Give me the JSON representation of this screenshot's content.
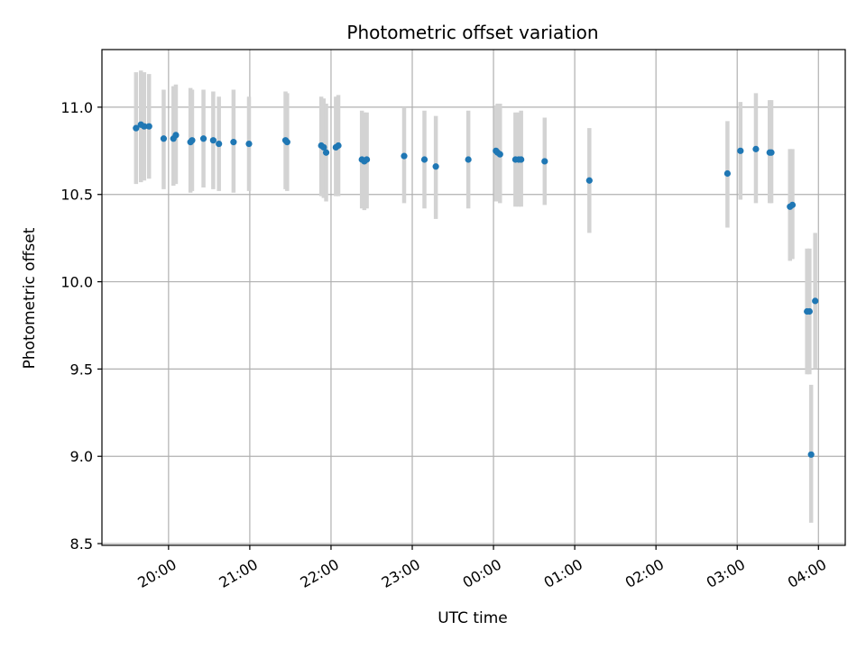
{
  "chart_data": {
    "type": "scatter",
    "title": "Photometric offset variation",
    "xlabel": "UTC time",
    "ylabel": "Photometric offset",
    "x_unit": "hours past 00:00 UTC (negative = previous evening)",
    "xlim": [
      -4.82,
      4.33
    ],
    "ylim": [
      8.49,
      11.33
    ],
    "xticks": [
      -4,
      -3,
      -2,
      -1,
      0,
      1,
      2,
      3,
      4
    ],
    "xtick_labels": [
      "20:00",
      "21:00",
      "22:00",
      "23:00",
      "00:00",
      "01:00",
      "02:00",
      "03:00",
      "04:00"
    ],
    "yticks": [
      8.5,
      9.0,
      9.5,
      10.0,
      10.5,
      11.0
    ],
    "ytick_labels": [
      "8.5",
      "9.0",
      "9.5",
      "10.0",
      "10.5",
      "11.0"
    ],
    "grid": true,
    "colors": {
      "points": "#1f77b4",
      "errorbars": "#d3d3d3",
      "grid": "#b0b0b0",
      "axes": "#000000"
    },
    "points": [
      {
        "x": -4.4,
        "y": 10.88,
        "lo": 10.56,
        "hi": 11.2
      },
      {
        "x": -4.34,
        "y": 10.9,
        "lo": 10.57,
        "hi": 11.21
      },
      {
        "x": -4.3,
        "y": 10.89,
        "lo": 10.58,
        "hi": 11.2
      },
      {
        "x": -4.24,
        "y": 10.89,
        "lo": 10.59,
        "hi": 11.19
      },
      {
        "x": -4.06,
        "y": 10.82,
        "lo": 10.53,
        "hi": 11.1
      },
      {
        "x": -3.94,
        "y": 10.82,
        "lo": 10.55,
        "hi": 11.12
      },
      {
        "x": -3.91,
        "y": 10.84,
        "lo": 10.56,
        "hi": 11.13
      },
      {
        "x": -3.73,
        "y": 10.8,
        "lo": 10.51,
        "hi": 11.11
      },
      {
        "x": -3.71,
        "y": 10.81,
        "lo": 10.52,
        "hi": 11.1
      },
      {
        "x": -3.57,
        "y": 10.82,
        "lo": 10.54,
        "hi": 11.1
      },
      {
        "x": -3.45,
        "y": 10.81,
        "lo": 10.53,
        "hi": 11.09
      },
      {
        "x": -3.38,
        "y": 10.79,
        "lo": 10.52,
        "hi": 11.06
      },
      {
        "x": -3.2,
        "y": 10.8,
        "lo": 10.51,
        "hi": 11.1
      },
      {
        "x": -3.01,
        "y": 10.79,
        "lo": 10.52,
        "hi": 11.06
      },
      {
        "x": -2.56,
        "y": 10.81,
        "lo": 10.53,
        "hi": 11.09
      },
      {
        "x": -2.54,
        "y": 10.8,
        "lo": 10.52,
        "hi": 11.08
      },
      {
        "x": -2.12,
        "y": 10.78,
        "lo": 10.49,
        "hi": 11.06
      },
      {
        "x": -2.09,
        "y": 10.77,
        "lo": 10.48,
        "hi": 11.05
      },
      {
        "x": -2.06,
        "y": 10.74,
        "lo": 10.46,
        "hi": 11.02
      },
      {
        "x": -1.94,
        "y": 10.77,
        "lo": 10.49,
        "hi": 11.06
      },
      {
        "x": -1.91,
        "y": 10.78,
        "lo": 10.49,
        "hi": 11.07
      },
      {
        "x": -1.62,
        "y": 10.7,
        "lo": 10.42,
        "hi": 10.98
      },
      {
        "x": -1.59,
        "y": 10.69,
        "lo": 10.41,
        "hi": 10.97
      },
      {
        "x": -1.56,
        "y": 10.7,
        "lo": 10.42,
        "hi": 10.97
      },
      {
        "x": -1.1,
        "y": 10.72,
        "lo": 10.45,
        "hi": 11.0
      },
      {
        "x": -0.85,
        "y": 10.7,
        "lo": 10.42,
        "hi": 10.98
      },
      {
        "x": -0.71,
        "y": 10.66,
        "lo": 10.36,
        "hi": 10.95
      },
      {
        "x": -0.31,
        "y": 10.7,
        "lo": 10.42,
        "hi": 10.98
      },
      {
        "x": 0.03,
        "y": 10.75,
        "lo": 10.46,
        "hi": 11.01
      },
      {
        "x": 0.05,
        "y": 10.74,
        "lo": 10.46,
        "hi": 11.02
      },
      {
        "x": 0.08,
        "y": 10.73,
        "lo": 10.45,
        "hi": 11.02
      },
      {
        "x": 0.27,
        "y": 10.7,
        "lo": 10.43,
        "hi": 10.97
      },
      {
        "x": 0.31,
        "y": 10.7,
        "lo": 10.43,
        "hi": 10.97
      },
      {
        "x": 0.34,
        "y": 10.7,
        "lo": 10.43,
        "hi": 10.98
      },
      {
        "x": 0.63,
        "y": 10.69,
        "lo": 10.44,
        "hi": 10.94
      },
      {
        "x": 1.18,
        "y": 10.58,
        "lo": 10.28,
        "hi": 10.88
      },
      {
        "x": 2.88,
        "y": 10.62,
        "lo": 10.31,
        "hi": 10.92
      },
      {
        "x": 3.04,
        "y": 10.75,
        "lo": 10.47,
        "hi": 11.03
      },
      {
        "x": 3.23,
        "y": 10.76,
        "lo": 10.45,
        "hi": 11.08
      },
      {
        "x": 3.4,
        "y": 10.74,
        "lo": 10.45,
        "hi": 11.04
      },
      {
        "x": 3.42,
        "y": 10.74,
        "lo": 10.45,
        "hi": 11.04
      },
      {
        "x": 3.65,
        "y": 10.43,
        "lo": 10.12,
        "hi": 10.76
      },
      {
        "x": 3.68,
        "y": 10.44,
        "lo": 10.13,
        "hi": 10.76
      },
      {
        "x": 3.86,
        "y": 9.83,
        "lo": 9.47,
        "hi": 10.19
      },
      {
        "x": 3.89,
        "y": 9.83,
        "lo": 9.47,
        "hi": 10.19
      },
      {
        "x": 3.91,
        "y": 9.01,
        "lo": 8.62,
        "hi": 9.41
      },
      {
        "x": 3.96,
        "y": 9.89,
        "lo": 9.5,
        "hi": 10.28
      }
    ]
  }
}
